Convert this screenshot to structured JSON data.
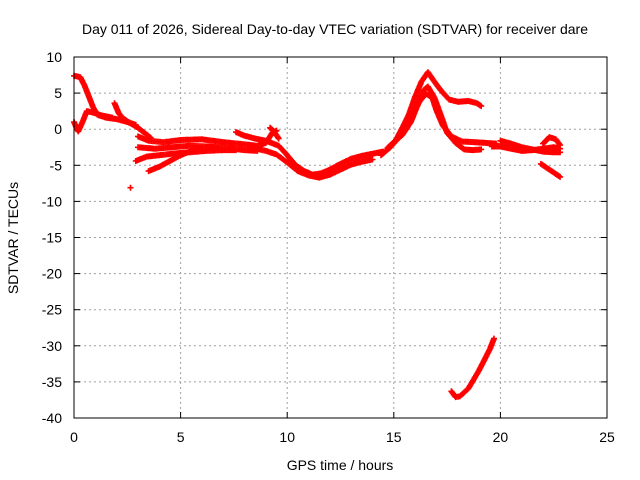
{
  "chart_data": {
    "type": "scatter",
    "title": "Day 011 of 2026, Sidereal Day-to-day VTEC variation (SDTVAR) for receiver dare",
    "xlabel": "GPS time / hours",
    "ylabel": "SDTVAR / TECUs",
    "xlim": [
      0,
      25
    ],
    "ylim": [
      -40,
      10
    ],
    "xticks": [
      "0",
      "5",
      "10",
      "15",
      "20",
      "25"
    ],
    "yticks": [
      "10",
      "5",
      "0",
      "-5",
      "-10",
      "-15",
      "-20",
      "-25",
      "-30",
      "-35",
      "-40"
    ],
    "grid": true,
    "marker": "+",
    "color": "#ff0000",
    "series": [
      {
        "name": "track-1",
        "points": [
          [
            0.0,
            7.4
          ],
          [
            0.3,
            7.2
          ],
          [
            0.5,
            6.0
          ],
          [
            0.7,
            4.5
          ],
          [
            0.9,
            3.0
          ],
          [
            1.1,
            2.0
          ],
          [
            1.5,
            1.6
          ],
          [
            2.0,
            1.4
          ],
          [
            2.5,
            1.0
          ],
          [
            2.9,
            0.6
          ]
        ]
      },
      {
        "name": "track-2",
        "points": [
          [
            0.0,
            1.0
          ],
          [
            0.1,
            0.3
          ],
          [
            0.2,
            -0.3
          ],
          [
            0.4,
            1.0
          ],
          [
            0.6,
            2.5
          ],
          [
            0.9,
            2.3
          ],
          [
            1.3,
            1.9
          ],
          [
            1.8,
            1.6
          ]
        ]
      },
      {
        "name": "track-3",
        "points": [
          [
            1.9,
            3.6
          ],
          [
            2.1,
            2.2
          ],
          [
            2.3,
            1.5
          ],
          [
            2.6,
            0.9
          ],
          [
            3.0,
            0.2
          ],
          [
            3.3,
            -0.5
          ],
          [
            3.6,
            -1.2
          ]
        ]
      },
      {
        "name": "track-4",
        "points": [
          [
            3.0,
            -1.0
          ],
          [
            3.5,
            -1.6
          ],
          [
            4.2,
            -1.8
          ],
          [
            5.0,
            -1.5
          ],
          [
            6.0,
            -1.4
          ],
          [
            7.0,
            -1.8
          ],
          [
            8.0,
            -2.1
          ],
          [
            8.6,
            -2.3
          ],
          [
            9.0,
            -1.9
          ],
          [
            9.3,
            -0.5
          ],
          [
            9.5,
            -0.2
          ]
        ]
      },
      {
        "name": "track-5",
        "points": [
          [
            3.0,
            -2.5
          ],
          [
            3.8,
            -2.7
          ],
          [
            4.6,
            -2.5
          ],
          [
            5.4,
            -2.3
          ],
          [
            6.3,
            -2.4
          ],
          [
            7.2,
            -2.6
          ],
          [
            8.0,
            -2.9
          ],
          [
            8.6,
            -3.0
          ]
        ]
      },
      {
        "name": "track-6",
        "points": [
          [
            2.9,
            -4.4
          ],
          [
            3.4,
            -3.8
          ],
          [
            4.0,
            -3.6
          ],
          [
            4.6,
            -3.4
          ],
          [
            5.4,
            -3.2
          ],
          [
            6.2,
            -3.0
          ],
          [
            7.0,
            -2.9
          ],
          [
            7.6,
            -2.9
          ]
        ]
      },
      {
        "name": "track-7",
        "points": [
          [
            3.5,
            -5.8
          ],
          [
            4.0,
            -5.2
          ],
          [
            4.5,
            -4.4
          ],
          [
            5.0,
            -3.6
          ],
          [
            5.5,
            -3.0
          ],
          [
            6.0,
            -2.7
          ]
        ]
      },
      {
        "name": "track-8",
        "points": [
          [
            7.6,
            -0.4
          ],
          [
            8.0,
            -0.9
          ],
          [
            8.5,
            -1.3
          ],
          [
            9.0,
            -1.6
          ],
          [
            9.6,
            -2.3
          ],
          [
            10.0,
            -3.6
          ],
          [
            10.4,
            -5.0
          ],
          [
            10.8,
            -5.8
          ],
          [
            11.2,
            -6.3
          ],
          [
            11.6,
            -6.1
          ],
          [
            12.0,
            -5.6
          ],
          [
            12.5,
            -4.8
          ],
          [
            13.0,
            -4.1
          ],
          [
            13.5,
            -3.7
          ],
          [
            14.0,
            -3.4
          ],
          [
            14.5,
            -3.1
          ]
        ]
      },
      {
        "name": "track-9",
        "points": [
          [
            8.4,
            -2.6
          ],
          [
            9.0,
            -3.0
          ],
          [
            9.5,
            -3.5
          ],
          [
            10.0,
            -4.6
          ],
          [
            10.5,
            -5.8
          ],
          [
            11.0,
            -6.4
          ],
          [
            11.5,
            -6.7
          ],
          [
            12.0,
            -6.3
          ],
          [
            12.5,
            -5.6
          ],
          [
            13.0,
            -4.9
          ],
          [
            13.5,
            -4.5
          ],
          [
            14.0,
            -4.2
          ]
        ]
      },
      {
        "name": "track-10",
        "points": [
          [
            9.2,
            0.2
          ],
          [
            9.4,
            -0.4
          ],
          [
            9.6,
            -1.3
          ]
        ]
      },
      {
        "name": "track-11",
        "points": [
          [
            14.4,
            -3.6
          ],
          [
            14.8,
            -2.6
          ],
          [
            15.2,
            -1.3
          ],
          [
            15.6,
            0.5
          ],
          [
            15.9,
            2.3
          ],
          [
            16.2,
            3.8
          ],
          [
            16.5,
            4.9
          ],
          [
            16.8,
            4.4
          ],
          [
            17.0,
            2.6
          ],
          [
            17.3,
            0.5
          ],
          [
            17.7,
            -1.0
          ],
          [
            18.2,
            -1.7
          ],
          [
            18.8,
            -1.8
          ],
          [
            19.3,
            -1.9
          ],
          [
            19.8,
            -2.0
          ]
        ]
      },
      {
        "name": "track-12",
        "points": [
          [
            14.7,
            -2.6
          ],
          [
            15.1,
            -1.5
          ],
          [
            15.4,
            0.2
          ],
          [
            15.7,
            2.0
          ],
          [
            16.0,
            4.5
          ],
          [
            16.3,
            6.6
          ],
          [
            16.6,
            7.9
          ],
          [
            16.9,
            6.6
          ],
          [
            17.2,
            5.4
          ],
          [
            17.6,
            4.1
          ],
          [
            18.0,
            3.8
          ],
          [
            18.5,
            3.9
          ],
          [
            18.9,
            3.6
          ],
          [
            19.1,
            3.2
          ]
        ]
      },
      {
        "name": "track-13",
        "points": [
          [
            15.0,
            -1.8
          ],
          [
            15.4,
            -0.8
          ],
          [
            15.8,
            1.0
          ],
          [
            16.1,
            3.2
          ],
          [
            16.4,
            5.4
          ],
          [
            16.6,
            5.9
          ],
          [
            16.9,
            4.4
          ],
          [
            17.2,
            2.0
          ],
          [
            17.5,
            -0.5
          ],
          [
            17.9,
            -1.9
          ],
          [
            18.3,
            -2.8
          ],
          [
            18.7,
            -2.9
          ],
          [
            19.1,
            -2.8
          ]
        ]
      },
      {
        "name": "track-14",
        "points": [
          [
            19.6,
            -2.4
          ],
          [
            20.0,
            -2.4
          ],
          [
            20.5,
            -2.7
          ],
          [
            21.0,
            -3.0
          ],
          [
            21.5,
            -2.9
          ],
          [
            22.0,
            -2.7
          ],
          [
            22.5,
            -2.5
          ],
          [
            22.8,
            -2.7
          ]
        ]
      },
      {
        "name": "track-15",
        "points": [
          [
            20.0,
            -1.6
          ],
          [
            20.5,
            -2.0
          ],
          [
            21.0,
            -2.5
          ],
          [
            21.5,
            -2.8
          ],
          [
            22.0,
            -3.1
          ],
          [
            22.5,
            -3.2
          ],
          [
            22.8,
            -3.2
          ]
        ]
      },
      {
        "name": "track-16",
        "points": [
          [
            22.0,
            -2.0
          ],
          [
            22.3,
            -1.1
          ],
          [
            22.6,
            -1.4
          ],
          [
            22.8,
            -2.2
          ]
        ]
      },
      {
        "name": "track-17",
        "points": [
          [
            21.9,
            -4.8
          ],
          [
            22.2,
            -5.4
          ],
          [
            22.5,
            -6.0
          ],
          [
            22.8,
            -6.6
          ]
        ]
      },
      {
        "name": "track-18",
        "points": [
          [
            17.7,
            -36.3
          ],
          [
            17.9,
            -37.1
          ],
          [
            18.1,
            -37.0
          ],
          [
            18.5,
            -35.9
          ],
          [
            19.0,
            -33.4
          ],
          [
            19.5,
            -30.5
          ],
          [
            19.7,
            -29.0
          ]
        ]
      },
      {
        "name": "outlier",
        "points": [
          [
            2.65,
            -8.1
          ]
        ]
      }
    ]
  }
}
